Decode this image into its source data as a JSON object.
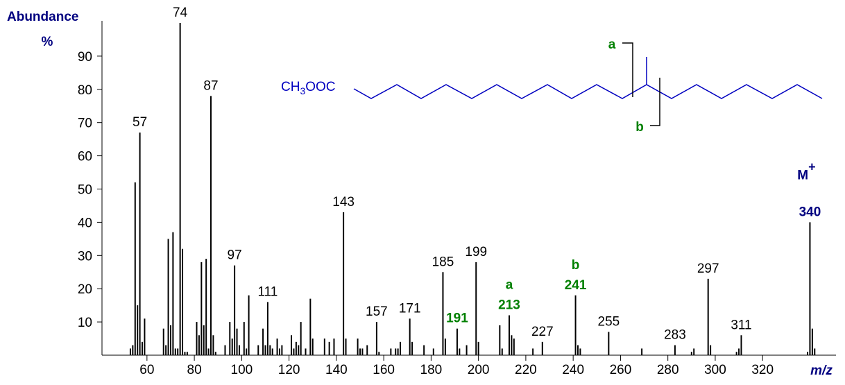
{
  "chart_data": {
    "type": "stick",
    "y_label": "Abundance",
    "y_unit": "%",
    "x_label": "m/z",
    "xlim": [
      41,
      351
    ],
    "ylim": [
      0,
      100
    ],
    "xticks": [
      60,
      80,
      100,
      120,
      140,
      160,
      180,
      200,
      220,
      240,
      260,
      280,
      300,
      320
    ],
    "yticks": [
      10,
      20,
      30,
      40,
      50,
      60,
      70,
      80,
      90
    ],
    "color": "#000000",
    "x": [
      53,
      54,
      55,
      56,
      57,
      58,
      59,
      67,
      68,
      69,
      70,
      71,
      72,
      73,
      74,
      75,
      76,
      77,
      81,
      82,
      83,
      84,
      85,
      86,
      87,
      88,
      89,
      93,
      95,
      96,
      97,
      98,
      99,
      101,
      102,
      103,
      107,
      109,
      110,
      111,
      112,
      113,
      115,
      116,
      117,
      121,
      122,
      123,
      124,
      125,
      127,
      129,
      130,
      135,
      137,
      139,
      143,
      144,
      149,
      150,
      151,
      153,
      157,
      158,
      163,
      165,
      166,
      167,
      171,
      172,
      177,
      181,
      185,
      186,
      191,
      192,
      195,
      199,
      200,
      209,
      210,
      213,
      214,
      215,
      223,
      227,
      241,
      242,
      243,
      255,
      269,
      283,
      290,
      291,
      297,
      298,
      309,
      310,
      311,
      339,
      340,
      341,
      342
    ],
    "values": [
      2,
      3,
      52,
      15,
      67,
      4,
      11,
      8,
      3,
      35,
      9,
      37,
      2,
      2,
      100,
      32,
      1,
      1,
      10,
      6,
      28,
      9,
      29,
      2,
      78,
      6,
      1,
      3,
      10,
      5,
      27,
      8,
      3,
      10,
      2,
      18,
      3,
      8,
      3,
      16,
      3,
      2,
      5,
      2,
      3,
      6,
      2,
      4,
      3,
      10,
      2,
      17,
      5,
      5,
      4,
      5,
      43,
      5,
      5,
      2,
      2,
      3,
      10,
      1,
      2,
      2,
      2,
      4,
      11,
      4,
      3,
      2,
      25,
      5,
      8,
      2,
      3,
      28,
      4,
      9,
      2,
      12,
      6,
      5,
      2,
      4,
      18,
      3,
      2,
      7,
      2,
      3,
      1,
      2,
      23,
      3,
      1,
      2,
      6,
      1,
      40,
      8,
      2
    ],
    "peak_labels": [
      {
        "value": 57,
        "color": "#000000",
        "bold": false
      },
      {
        "value": 74,
        "color": "#000000",
        "bold": false
      },
      {
        "value": 87,
        "color": "#000000",
        "bold": false
      },
      {
        "value": 97,
        "color": "#000000",
        "bold": false
      },
      {
        "value": 111,
        "color": "#000000",
        "bold": false
      },
      {
        "value": 143,
        "color": "#000000",
        "bold": false
      },
      {
        "value": 157,
        "color": "#000000",
        "bold": false
      },
      {
        "value": 171,
        "color": "#000000",
        "bold": false
      },
      {
        "value": 185,
        "color": "#000000",
        "bold": false
      },
      {
        "value": 191,
        "color": "#008000",
        "bold": true
      },
      {
        "value": 199,
        "color": "#000000",
        "bold": false
      },
      {
        "value": 213,
        "color": "#008000",
        "bold": true,
        "tag": "a"
      },
      {
        "value": 227,
        "color": "#000000",
        "bold": false
      },
      {
        "value": 241,
        "color": "#008000",
        "bold": true,
        "tag": "b"
      },
      {
        "value": 255,
        "color": "#000000",
        "bold": false
      },
      {
        "value": 283,
        "color": "#000000",
        "bold": false
      },
      {
        "value": 297,
        "color": "#000000",
        "bold": false
      },
      {
        "value": 311,
        "color": "#000000",
        "bold": false
      },
      {
        "value": 340,
        "color": "#000080",
        "bold": true,
        "tag": "M",
        "tag_sup": "+"
      }
    ],
    "structure": {
      "formula": [
        "CH",
        "3",
        "OOC"
      ],
      "cleavage_a": "a",
      "cleavage_b": "b"
    }
  }
}
